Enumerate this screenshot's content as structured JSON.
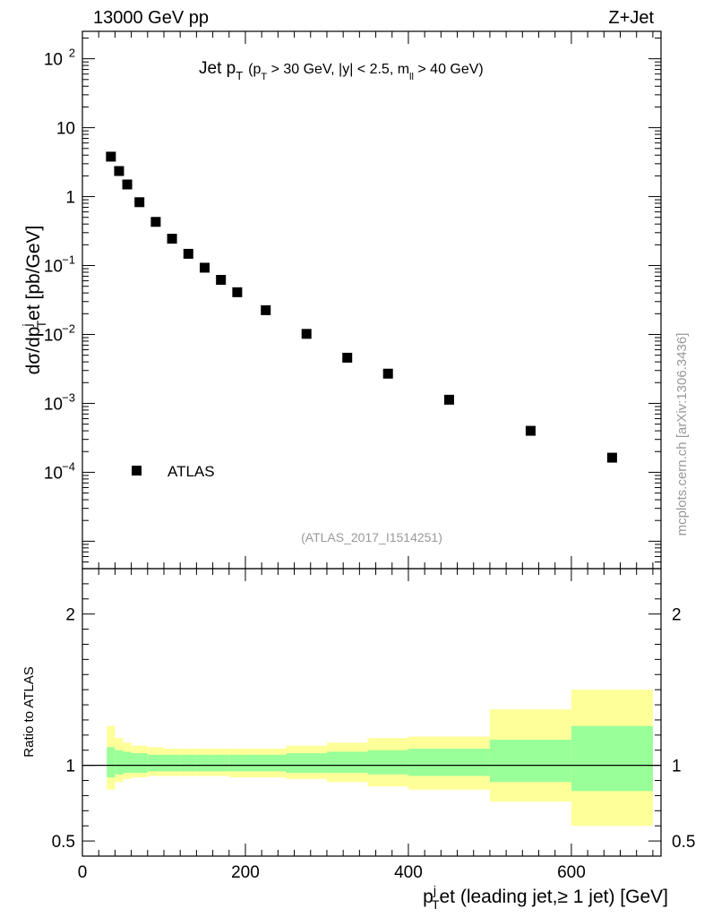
{
  "header": {
    "left": "13000 GeV pp",
    "right": "Z+Jet"
  },
  "side_label": "mcplots.cern.ch [arXiv:1306.3436]",
  "chart_data": [
    {
      "type": "scatter",
      "title": "Jet pT (pT > 30 GeV, |y| < 2.5, mll > 40 GeV)",
      "title_parts": {
        "main": "Jet p",
        "main_sub": "T",
        "cond_open": "(p",
        "cond_sub": "T",
        "cond_mid": " > 30 GeV, |y| < 2.5, m",
        "cond_sub2": "ll",
        "cond_end": " > 40 GeV)"
      },
      "ylabel": "dσ/dpTjet [pb/GeV]",
      "ylabel_parts": {
        "a": "dσ/dp",
        "sub": "T",
        "sup": "j",
        "b": "et [pb/GeV]"
      },
      "yscale": "log",
      "ylim": [
        4e-06,
        250
      ],
      "xlim": [
        0,
        710
      ],
      "y_ticks": [
        {
          "value": 100,
          "label": "10",
          "exp": "2"
        },
        {
          "value": 10,
          "label": "10",
          "exp": ""
        },
        {
          "value": 1,
          "label": "1",
          "exp": ""
        },
        {
          "value": 0.1,
          "label": "10",
          "exp": "−1"
        },
        {
          "value": 0.01,
          "label": "10",
          "exp": "−2"
        },
        {
          "value": 0.001,
          "label": "10",
          "exp": "−3"
        },
        {
          "value": 0.0001,
          "label": "10",
          "exp": "−4"
        }
      ],
      "series": [
        {
          "name": "ATLAS",
          "marker": "square",
          "color": "#000000",
          "x": [
            35,
            45,
            55,
            70,
            90,
            110,
            130,
            150,
            170,
            190,
            225,
            275,
            325,
            375,
            450,
            550,
            650
          ],
          "y": [
            3.8,
            2.35,
            1.5,
            0.83,
            0.43,
            0.245,
            0.148,
            0.093,
            0.062,
            0.041,
            0.0225,
            0.0102,
            0.0046,
            0.0027,
            0.00113,
            0.0004,
            0.000163
          ]
        }
      ],
      "legend": {
        "location": "lower-left",
        "entries": [
          "ATLAS"
        ]
      },
      "annotation": "(ATLAS_2017_I1514251)"
    },
    {
      "type": "area",
      "ylabel": "Ratio to ATLAS",
      "xlabel": "pTjet (leading jet,≥ 1 jet) [GeV]",
      "xlabel_parts": {
        "a": "p",
        "sub": "T",
        "sup": "j",
        "b": "et (leading jet,≥ 1 jet) [GeV]"
      },
      "xlim": [
        0,
        710
      ],
      "ylim": [
        0.4,
        2.3
      ],
      "x_ticks": [
        0,
        200,
        400,
        600
      ],
      "x_tick_labels": [
        "0",
        "200",
        "400",
        "600"
      ],
      "y_ticks": [
        0.5,
        1,
        2
      ],
      "y_tick_labels": [
        "0.5",
        "1",
        "2"
      ],
      "reference_line": 1,
      "bins": [
        {
          "lo": 30,
          "hi": 40,
          "inner": [
            0.92,
            1.12
          ],
          "outer": [
            0.84,
            1.26
          ]
        },
        {
          "lo": 40,
          "hi": 50,
          "inner": [
            0.94,
            1.1
          ],
          "outer": [
            0.89,
            1.18
          ]
        },
        {
          "lo": 50,
          "hi": 60,
          "inner": [
            0.95,
            1.09
          ],
          "outer": [
            0.91,
            1.15
          ]
        },
        {
          "lo": 60,
          "hi": 80,
          "inner": [
            0.95,
            1.08
          ],
          "outer": [
            0.92,
            1.13
          ]
        },
        {
          "lo": 80,
          "hi": 100,
          "inner": [
            0.96,
            1.07
          ],
          "outer": [
            0.93,
            1.12
          ]
        },
        {
          "lo": 100,
          "hi": 120,
          "inner": [
            0.96,
            1.07
          ],
          "outer": [
            0.93,
            1.11
          ]
        },
        {
          "lo": 120,
          "hi": 140,
          "inner": [
            0.96,
            1.07
          ],
          "outer": [
            0.93,
            1.11
          ]
        },
        {
          "lo": 140,
          "hi": 160,
          "inner": [
            0.96,
            1.07
          ],
          "outer": [
            0.93,
            1.11
          ]
        },
        {
          "lo": 160,
          "hi": 180,
          "inner": [
            0.96,
            1.07
          ],
          "outer": [
            0.93,
            1.11
          ]
        },
        {
          "lo": 180,
          "hi": 200,
          "inner": [
            0.96,
            1.07
          ],
          "outer": [
            0.92,
            1.11
          ]
        },
        {
          "lo": 200,
          "hi": 250,
          "inner": [
            0.96,
            1.07
          ],
          "outer": [
            0.92,
            1.11
          ]
        },
        {
          "lo": 250,
          "hi": 300,
          "inner": [
            0.95,
            1.08
          ],
          "outer": [
            0.91,
            1.13
          ]
        },
        {
          "lo": 300,
          "hi": 350,
          "inner": [
            0.95,
            1.09
          ],
          "outer": [
            0.89,
            1.15
          ]
        },
        {
          "lo": 350,
          "hi": 400,
          "inner": [
            0.94,
            1.1
          ],
          "outer": [
            0.86,
            1.18
          ]
        },
        {
          "lo": 400,
          "hi": 500,
          "inner": [
            0.93,
            1.11
          ],
          "outer": [
            0.84,
            1.19
          ]
        },
        {
          "lo": 500,
          "hi": 600,
          "inner": [
            0.89,
            1.17
          ],
          "outer": [
            0.76,
            1.37
          ]
        },
        {
          "lo": 600,
          "hi": 700,
          "inner": [
            0.83,
            1.26
          ],
          "outer": [
            0.6,
            1.5
          ]
        }
      ],
      "colors": {
        "inner": "#99ff99",
        "outer": "#ffff99",
        "line": "#000000"
      }
    }
  ]
}
